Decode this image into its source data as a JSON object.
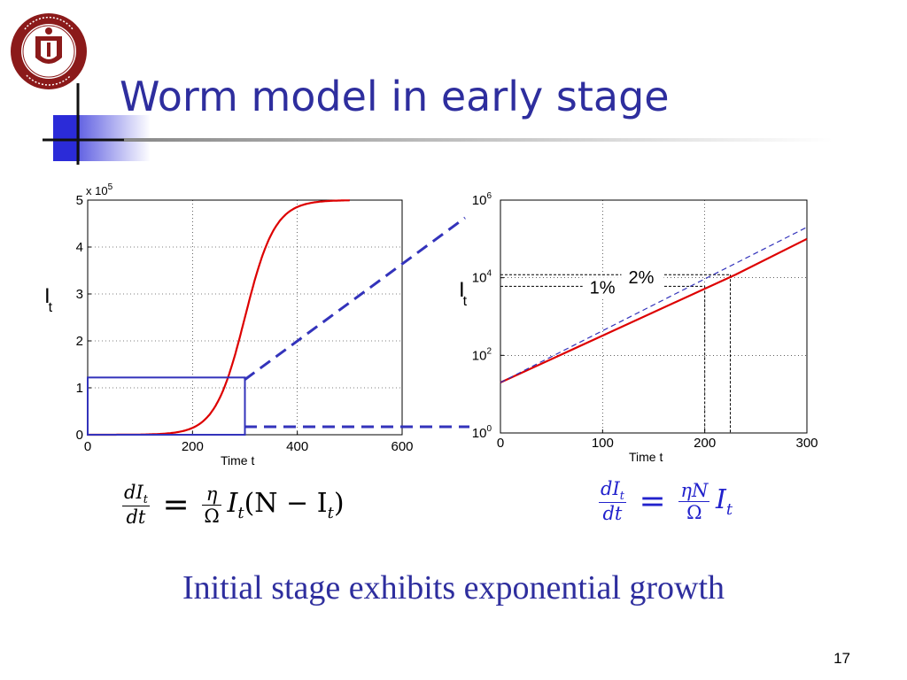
{
  "slide": {
    "title": "Worm model in early stage",
    "subtitle": "Initial stage exhibits exponential growth",
    "page_number": "17",
    "logo_text": "UNIVERSITY OF MASSACHUSETTS · AMHERST 1863",
    "colors": {
      "title": "#2e2e9e",
      "accent_blue": "#3333bb",
      "curve_red": "#dd0000",
      "logo_red": "#8b1a1a"
    }
  },
  "equations": {
    "left": {
      "num": "dI",
      "num_sub": "t",
      "den": "dt",
      "op": "=",
      "coef_num": "η",
      "coef_den": "Ω",
      "tail_a": "I",
      "tail_a_sub": "t",
      "tail_b": "(N − I",
      "tail_b_sub": "t",
      "tail_c": ")"
    },
    "right": {
      "num": "dI",
      "num_sub": "t",
      "den": "dt",
      "op": "=",
      "coef_num": "ηN",
      "coef_den": "Ω",
      "tail_a": "I",
      "tail_a_sub": "t"
    }
  },
  "chart_data": [
    {
      "type": "line",
      "xlabel": "Time t",
      "ylabel": "I",
      "ylabel_sub": "t",
      "xlim": [
        0,
        600
      ],
      "ylim": [
        0,
        5
      ],
      "y_multiplier": "x 10",
      "y_multiplier_exp": "5",
      "xticks": [
        "0",
        "200",
        "400",
        "600"
      ],
      "yticks": [
        "0",
        "1",
        "2",
        "3",
        "4",
        "5"
      ],
      "grid": true,
      "series": [
        {
          "color": "#dd0000",
          "logistic": {
            "K": 5,
            "r": 0.035,
            "t0": 300,
            "t_end": 500
          }
        }
      ],
      "zoom_box": {
        "x": [
          0,
          300
        ],
        "y": [
          0,
          1.22
        ]
      }
    },
    {
      "type": "line",
      "xlabel": "Time t",
      "ylabel": "I",
      "ylabel_sub": "t",
      "xlim": [
        0,
        300
      ],
      "ylim": [
        1,
        1000000
      ],
      "yscale": "log",
      "xticks": [
        "0",
        "100",
        "200",
        "300"
      ],
      "ytick_base": "10",
      "yticks_exp": [
        "0",
        "2",
        "4",
        "6"
      ],
      "grid": true,
      "series": [
        {
          "style": "solid",
          "color": "#dd0000",
          "x": [
            0,
            230,
            300
          ],
          "y": [
            20,
            12000,
            100000
          ]
        },
        {
          "style": "dashed",
          "color": "#3333bb",
          "x": [
            0,
            300
          ],
          "y": [
            20,
            200000
          ]
        }
      ],
      "annotations": [
        {
          "text": "1%",
          "x": 200,
          "y": 6000
        },
        {
          "text": "2%",
          "x": 225,
          "y": 12000
        }
      ]
    }
  ]
}
